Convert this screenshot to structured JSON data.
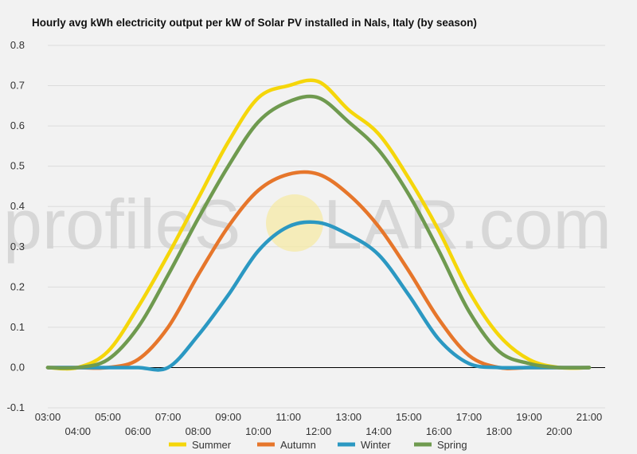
{
  "chart_data": {
    "type": "line",
    "title": "Hourly avg kWh electricity output per kW of Solar PV installed in Nals, Italy (by season)",
    "xlabel": "",
    "ylabel": "",
    "ylim": [
      -0.1,
      0.8
    ],
    "yticks": [
      "0.8",
      "0.7",
      "0.6",
      "0.5",
      "0.4",
      "0.3",
      "0.2",
      "0.1",
      "0.0",
      "-0.1"
    ],
    "x": [
      "03:00",
      "04:00",
      "05:00",
      "06:00",
      "07:00",
      "08:00",
      "09:00",
      "10:00",
      "11:00",
      "12:00",
      "13:00",
      "14:00",
      "15:00",
      "16:00",
      "17:00",
      "18:00",
      "19:00",
      "20:00",
      "21:00"
    ],
    "grid": true,
    "legend": "bottom",
    "series": [
      {
        "name": "Summer",
        "color": "#f5d60a",
        "values": [
          0,
          0,
          0.04,
          0.15,
          0.28,
          0.42,
          0.56,
          0.67,
          0.7,
          0.71,
          0.64,
          0.58,
          0.47,
          0.34,
          0.19,
          0.08,
          0.02,
          0,
          0
        ]
      },
      {
        "name": "Autumn",
        "color": "#e6762b",
        "values": [
          0,
          0,
          0,
          0.02,
          0.1,
          0.23,
          0.35,
          0.44,
          0.48,
          0.48,
          0.43,
          0.35,
          0.24,
          0.12,
          0.03,
          0,
          0,
          0,
          0
        ]
      },
      {
        "name": "Winter",
        "color": "#2b98c2",
        "values": [
          0,
          0,
          0,
          0,
          0,
          0.08,
          0.18,
          0.29,
          0.35,
          0.36,
          0.33,
          0.28,
          0.18,
          0.07,
          0.01,
          0,
          0,
          0,
          0
        ]
      },
      {
        "name": "Spring",
        "color": "#6f9a4f",
        "values": [
          0,
          0,
          0.02,
          0.1,
          0.23,
          0.37,
          0.5,
          0.61,
          0.66,
          0.67,
          0.61,
          0.54,
          0.43,
          0.29,
          0.14,
          0.04,
          0.01,
          0,
          0
        ]
      }
    ]
  },
  "watermark": {
    "left": "profileS",
    "right": "LAR.com"
  }
}
